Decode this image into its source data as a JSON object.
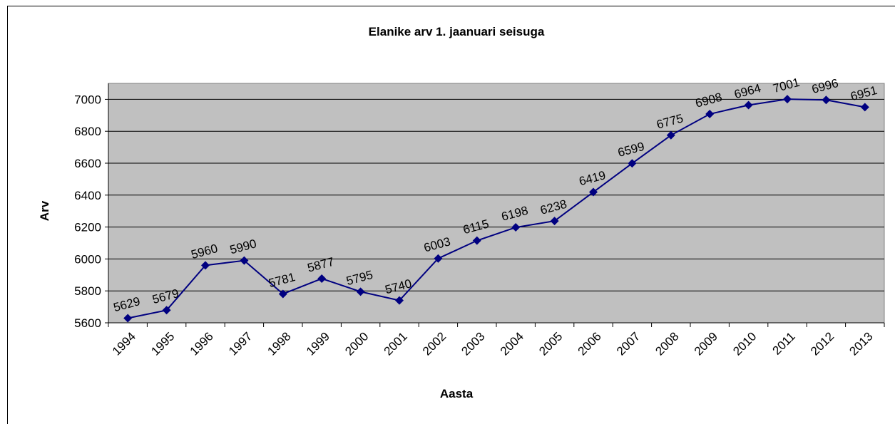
{
  "chart_data": {
    "type": "line",
    "title": "Elanike arv 1. jaanuari seisuga",
    "x_label": "Aasta",
    "y_label": "Arv",
    "categories": [
      "1994",
      "1995",
      "1996",
      "1997",
      "1998",
      "1999",
      "2000",
      "2001",
      "2002",
      "2003",
      "2004",
      "2005",
      "2006",
      "2007",
      "2008",
      "2009",
      "2010",
      "2011",
      "2012",
      "2013"
    ],
    "series": [
      {
        "name": "Arv",
        "color": "#000080",
        "values": [
          5629,
          5679,
          5960,
          5990,
          5781,
          5877,
          5795,
          5740,
          6003,
          6115,
          6198,
          6238,
          6419,
          6599,
          6775,
          6908,
          6964,
          7001,
          6996,
          6951
        ]
      }
    ],
    "ylim": [
      5600,
      7100
    ],
    "yticks": [
      5600,
      5800,
      6000,
      6200,
      6400,
      6600,
      6800,
      7000
    ],
    "grid": true
  }
}
